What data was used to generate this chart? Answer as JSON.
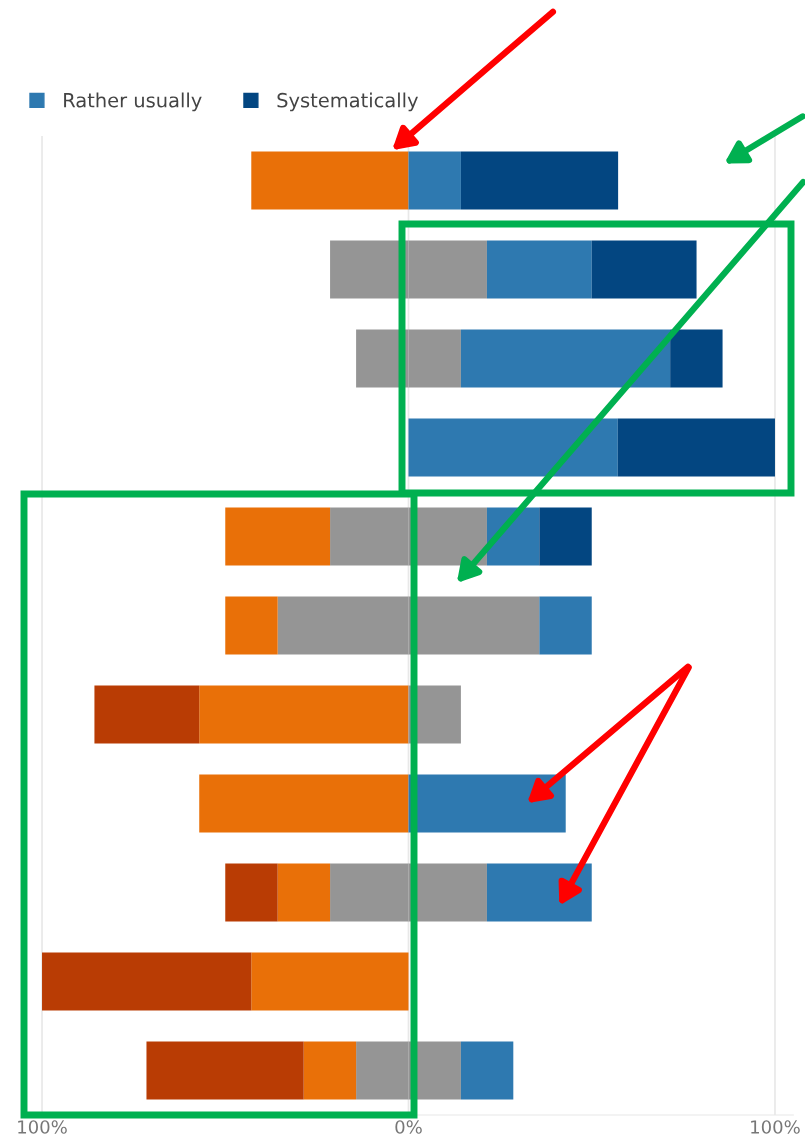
{
  "chart_data": {
    "type": "bar",
    "orientation": "horizontal",
    "stacked": true,
    "categories": [
      null,
      null,
      null,
      null,
      null,
      null,
      null,
      null,
      null,
      null,
      null
    ],
    "series": [
      {
        "color": "#959595",
        "values": [
          0,
          -21.4,
          -14.3,
          0,
          -21.4,
          -35.7,
          0,
          0,
          -21.4,
          0,
          -14.3
        ]
      },
      {
        "color": "#e97008",
        "values": [
          -42.9,
          0,
          0,
          0,
          -28.6,
          -14.3,
          -57.1,
          -57.1,
          -14.3,
          -42.9,
          -14.3
        ]
      },
      {
        "color": "#b93c04",
        "values": [
          0,
          0,
          0,
          0,
          0,
          0,
          -28.6,
          0,
          -14.3,
          -57.1,
          -42.9
        ]
      },
      {
        "color": "#959595",
        "values": [
          0,
          21.4,
          14.3,
          0,
          21.4,
          35.7,
          14.3,
          0,
          21.4,
          0,
          14.3
        ]
      },
      {
        "name": "Rather usually",
        "color": "#2e79b0",
        "values": [
          14.3,
          28.6,
          57.1,
          57.1,
          14.3,
          14.3,
          0,
          42.9,
          28.6,
          0,
          14.3
        ]
      },
      {
        "name": "Systematically",
        "color": "#034681",
        "values": [
          42.9,
          28.6,
          14.3,
          42.9,
          14.3,
          0,
          0,
          0,
          0,
          0,
          0
        ]
      }
    ],
    "xlim": [
      -105,
      105
    ],
    "xticks": [
      {
        "value": -100,
        "label": "100%"
      },
      {
        "value": 0,
        "label": "0%"
      },
      {
        "value": 100,
        "label": "100%"
      }
    ],
    "grid": "x",
    "legend": "top left"
  }
}
